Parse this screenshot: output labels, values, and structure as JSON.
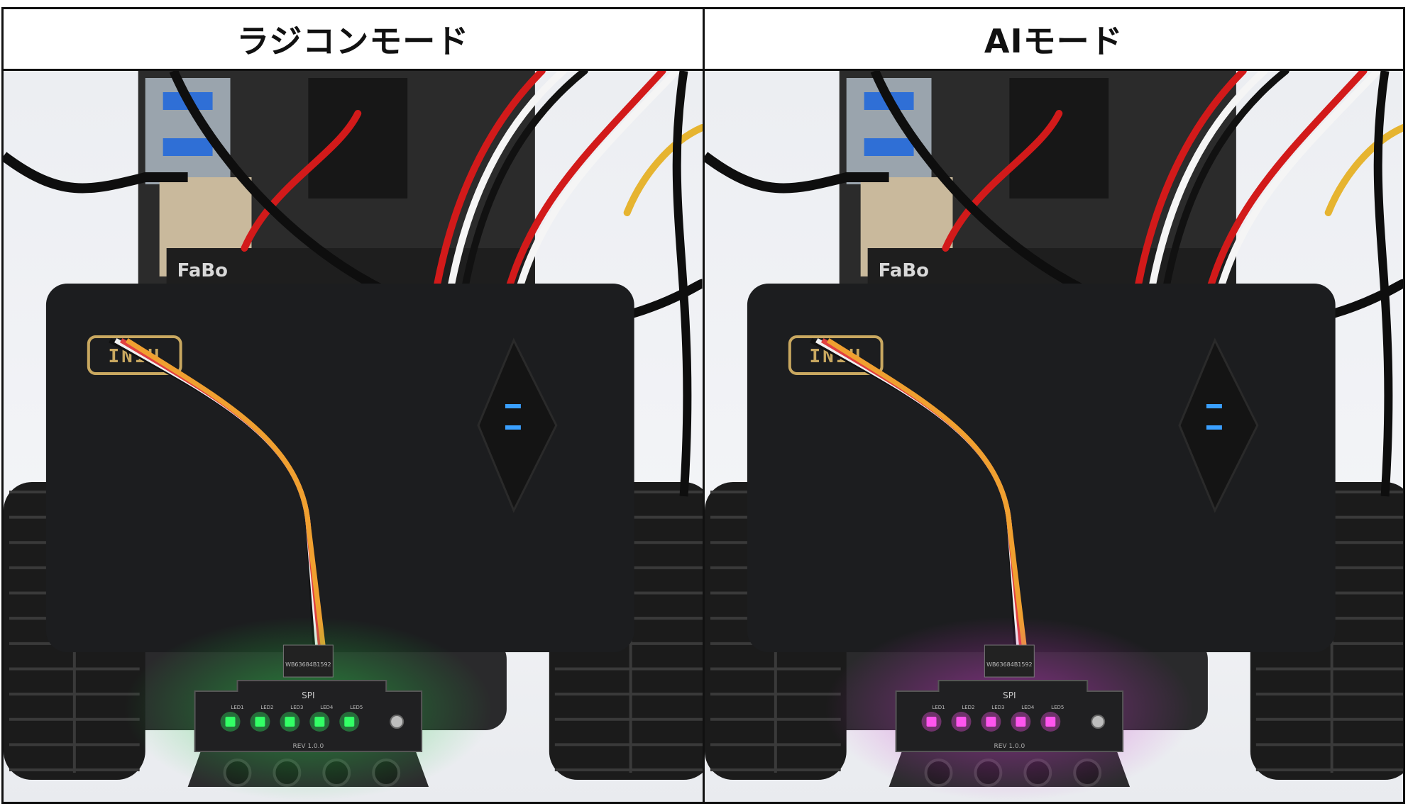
{
  "panels": [
    {
      "title": "ラジコンモード",
      "battery_logo": "INIU",
      "led_color": "#33ff66",
      "led_glow": "#22cc44",
      "display_color": "#3aa0ff"
    },
    {
      "title": "AIモード",
      "battery_logo": "INIU",
      "led_color": "#ff55ee",
      "led_glow": "#cc33cc",
      "display_color": "#3aa0ff"
    }
  ],
  "board": {
    "brand": "FaBo",
    "connector_label": "SPI",
    "led_labels": [
      "LED1",
      "LED2",
      "LED3",
      "LED4",
      "LED5"
    ],
    "revision": "REV 1.0.0",
    "part_number": "WB63684B1592"
  },
  "colors": {
    "border": "#111111",
    "battery_body": "#1c1d1f",
    "logo_gold": "#c9a860"
  }
}
